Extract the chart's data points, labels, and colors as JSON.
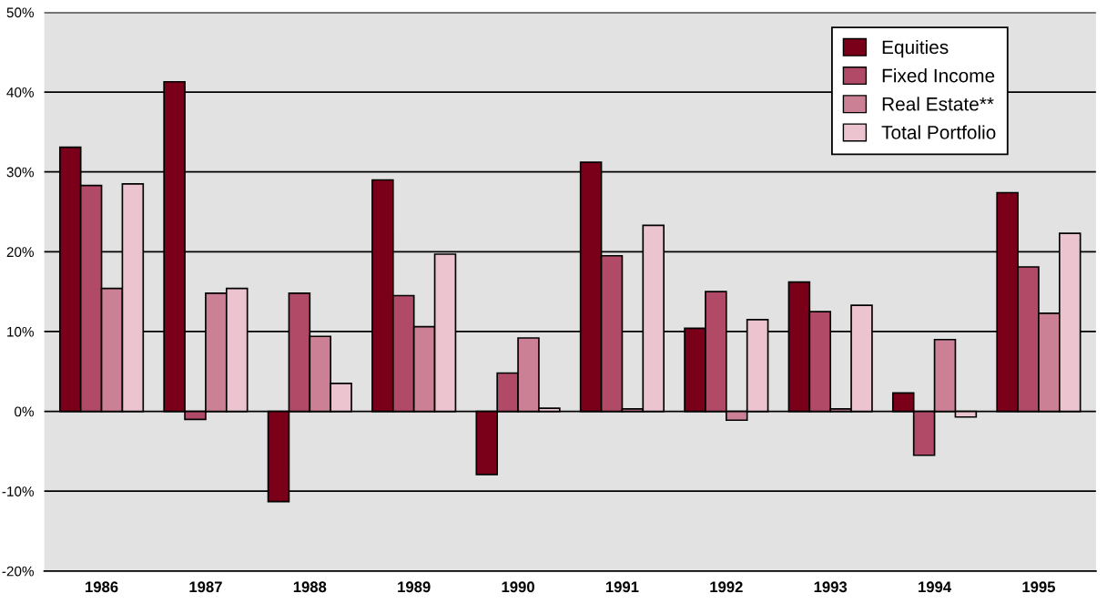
{
  "chart_data": {
    "type": "bar",
    "categories": [
      "1986",
      "1987",
      "1988",
      "1989",
      "1990",
      "1991",
      "1992",
      "1993",
      "1994",
      "1995"
    ],
    "series": [
      {
        "name": "Equities",
        "color": "#7a0019",
        "values": [
          33.1,
          41.3,
          -11.3,
          29.0,
          -7.9,
          31.2,
          10.4,
          16.2,
          2.3,
          27.4
        ]
      },
      {
        "name": "Fixed Income",
        "color": "#b04a66",
        "values": [
          28.3,
          -1.0,
          14.8,
          14.5,
          4.8,
          19.5,
          15.0,
          12.5,
          -5.5,
          18.1
        ]
      },
      {
        "name": "Real Estate**",
        "color": "#cc8095",
        "values": [
          15.4,
          14.8,
          9.4,
          10.6,
          9.2,
          0.3,
          -1.1,
          0.3,
          9.0,
          12.3
        ]
      },
      {
        "name": "Total Portfolio",
        "color": "#ecc4cf",
        "values": [
          28.5,
          15.4,
          3.5,
          19.7,
          0.4,
          23.3,
          11.5,
          13.3,
          -0.7,
          22.3
        ]
      }
    ],
    "ylim": [
      -20,
      50
    ],
    "yticks": [
      {
        "value": -20,
        "label": "-20%"
      },
      {
        "value": -10,
        "label": "-10%"
      },
      {
        "value": 0,
        "label": "0%"
      },
      {
        "value": 10,
        "label": "10%"
      },
      {
        "value": 20,
        "label": "20%"
      },
      {
        "value": 30,
        "label": "30%"
      },
      {
        "value": 40,
        "label": "40%"
      },
      {
        "value": 50,
        "label": "50%"
      }
    ],
    "grid": "y",
    "legend": "top right"
  }
}
